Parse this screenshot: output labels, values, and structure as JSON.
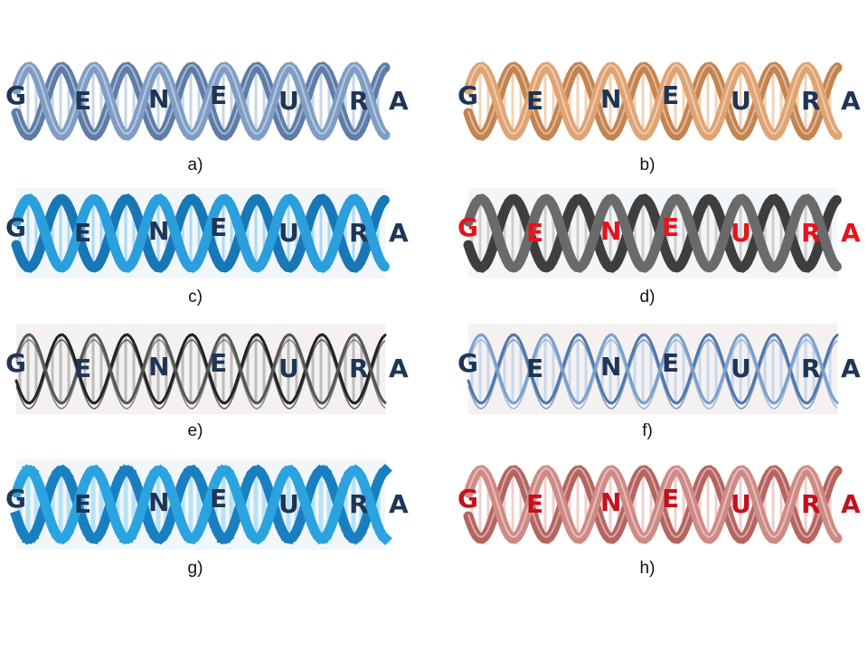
{
  "word": [
    "G",
    "E",
    "N",
    "E",
    "U",
    "R",
    "A"
  ],
  "panels": [
    {
      "caption": "a)",
      "style": "smooth",
      "strand": "#7f9dc4",
      "strand_dark": "#5d7ca8",
      "rung": "#c9d6e6",
      "letters": "#1f3556"
    },
    {
      "caption": "b)",
      "style": "smooth",
      "strand": "#e0a372",
      "strand_dark": "#c5834f",
      "rung": "#f2d3b6",
      "letters": "#1f3556"
    },
    {
      "caption": "c)",
      "style": "rough",
      "strand": "#2a9fdc",
      "strand_dark": "#1877b5",
      "rung": "#a9dbf5",
      "letters": "#1f3556"
    },
    {
      "caption": "d)",
      "style": "rough",
      "strand": "#6a6a6a",
      "strand_dark": "#3e3e3e",
      "rung": "#cfcfcf",
      "letters": "#e8121b"
    },
    {
      "caption": "e)",
      "style": "sketch",
      "strand": "#555555",
      "strand_dark": "#222222",
      "rung": "#bdbdbd",
      "letters": "#1f3556"
    },
    {
      "caption": "f)",
      "style": "sketch",
      "strand": "#7aa0cc",
      "strand_dark": "#4f78aa",
      "rung": "#c8d9ee",
      "letters": "#1f3556"
    },
    {
      "caption": "g)",
      "style": "pixel",
      "strand": "#2aa3de",
      "strand_dark": "#1a7fc0",
      "rung": "#b5e2f7",
      "letters": "#1f3556"
    },
    {
      "caption": "h)",
      "style": "smooth",
      "strand": "#cf8a86",
      "strand_dark": "#b56460",
      "rung": "#efcfcd",
      "letters": "#c4111c"
    }
  ]
}
